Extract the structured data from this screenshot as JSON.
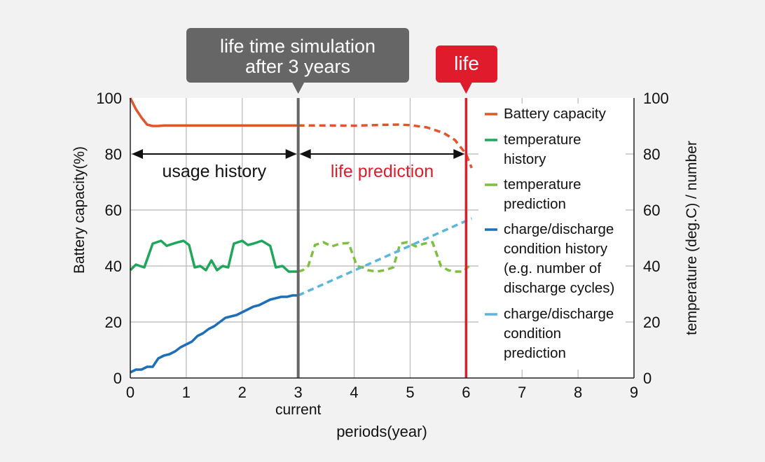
{
  "chart_data": {
    "type": "line",
    "xlabel": "periods(year)",
    "x_current_label": "current",
    "ylabel_left": "Battery capacity(%)",
    "ylabel_right": "temperature (deg.C) / number",
    "xlim": [
      0,
      9
    ],
    "ylim": [
      0,
      100
    ],
    "xticks": [
      "0",
      "1",
      "2",
      "3",
      "4",
      "5",
      "6",
      "7",
      "8",
      "9"
    ],
    "yticks_left": [
      "0",
      "20",
      "40",
      "60",
      "80",
      "100"
    ],
    "yticks_right": [
      "0",
      "20",
      "40",
      "60",
      "80",
      "100"
    ],
    "grid": true,
    "legend_position": "right",
    "callouts": {
      "simulation_line1": "life time simulation",
      "simulation_line2": "after 3 years",
      "life": "life"
    },
    "markers": {
      "current_x": 3,
      "life_x": 6
    },
    "regions": {
      "history_label": "usage history",
      "prediction_label": "life prediction",
      "arrow_y": 80
    },
    "colors": {
      "capacity": "#e0552b",
      "temp_hist": "#1fa65a",
      "temp_pred": "#7fbf3f",
      "cd_hist": "#1f6fb8",
      "cd_pred": "#5bb6dd",
      "current_line": "#666666",
      "life_line": "#e01b2b",
      "callout_dark": "#666666",
      "callout_red": "#e01b2b",
      "prediction_text": "#e01b2b"
    },
    "series": [
      {
        "key": "capacity",
        "name": "Battery capacity",
        "style": "solid",
        "x": [
          0,
          0.05,
          0.1,
          0.2,
          0.3,
          0.4,
          0.5,
          0.6,
          0.8,
          1,
          1.5,
          2,
          2.5,
          3
        ],
        "y": [
          100,
          98,
          96,
          93,
          90.5,
          90,
          90,
          90.2,
          90.2,
          90.2,
          90.2,
          90.2,
          90.2,
          90.2
        ]
      },
      {
        "key": "capacity_pred",
        "name": "",
        "style": "dashed",
        "x": [
          3,
          3.5,
          4,
          4.5,
          4.8,
          5,
          5.3,
          5.6,
          5.8,
          6,
          6.1
        ],
        "y": [
          90.2,
          90.2,
          90.1,
          90.4,
          90.5,
          90.3,
          89.5,
          87.5,
          85,
          80,
          75
        ]
      },
      {
        "key": "temp_hist",
        "name": "temperature history",
        "style": "solid",
        "x": [
          0,
          0.1,
          0.25,
          0.4,
          0.55,
          0.65,
          0.8,
          0.95,
          1.05,
          1.15,
          1.25,
          1.35,
          1.45,
          1.55,
          1.65,
          1.75,
          1.85,
          2,
          2.1,
          2.2,
          2.35,
          2.5,
          2.6,
          2.72,
          2.83,
          2.95,
          3
        ],
        "y": [
          38.5,
          40.5,
          39.5,
          48,
          49,
          47.2,
          48.2,
          49,
          47.5,
          39.5,
          40,
          38.5,
          42,
          38.5,
          40,
          39.5,
          48,
          49,
          47.5,
          48,
          49,
          47.2,
          39.5,
          40,
          38,
          38,
          38
        ]
      },
      {
        "key": "temp_pred",
        "name": "temperature prediction",
        "style": "dashed",
        "x": [
          3,
          3.08,
          3.18,
          3.3,
          3.45,
          3.6,
          3.75,
          3.9,
          4.05,
          4.15,
          4.25,
          4.4,
          4.55,
          4.7,
          4.82,
          4.95,
          5.1,
          5.25,
          5.4,
          5.55,
          5.68,
          5.8,
          5.95,
          6.05
        ],
        "y": [
          38,
          38.5,
          40,
          47.5,
          48.5,
          47,
          48,
          48.2,
          40,
          39.5,
          38.5,
          38,
          38.5,
          39.5,
          48,
          48.5,
          47,
          48,
          48.5,
          40,
          38.5,
          38,
          38,
          40
        ]
      },
      {
        "key": "cd_hist",
        "name": "charge/discharge condition history (e.g. number of discharge cycles)",
        "style": "solid",
        "x": [
          0,
          0.1,
          0.2,
          0.3,
          0.4,
          0.5,
          0.6,
          0.7,
          0.8,
          0.9,
          1,
          1.1,
          1.2,
          1.3,
          1.4,
          1.5,
          1.6,
          1.7,
          1.8,
          1.9,
          2,
          2.1,
          2.2,
          2.3,
          2.4,
          2.5,
          2.6,
          2.7,
          2.8,
          2.9,
          3
        ],
        "y": [
          2,
          3,
          3,
          4,
          4,
          7,
          8,
          8.5,
          9.5,
          11,
          12,
          13,
          15,
          16,
          17.5,
          18.5,
          20,
          21.5,
          22,
          22.5,
          23.5,
          24.5,
          25.5,
          26,
          27,
          28,
          28.5,
          29,
          29,
          29.5,
          29.5
        ]
      },
      {
        "key": "cd_pred",
        "name": "charge/discharge condition prediction",
        "style": "dashed",
        "x": [
          3,
          6.1
        ],
        "y": [
          29.5,
          57
        ]
      }
    ],
    "legend": [
      {
        "series": "capacity",
        "lines": [
          "Battery capacity"
        ]
      },
      {
        "series": "temp_hist",
        "lines": [
          "temperature",
          "history"
        ]
      },
      {
        "series": "temp_pred",
        "lines": [
          "temperature",
          "prediction"
        ]
      },
      {
        "series": "cd_hist",
        "lines": [
          "charge/discharge",
          "condition history",
          "(e.g. number of",
          "discharge cycles)"
        ]
      },
      {
        "series": "cd_pred",
        "lines": [
          "charge/discharge",
          "condition",
          "prediction"
        ]
      }
    ]
  }
}
